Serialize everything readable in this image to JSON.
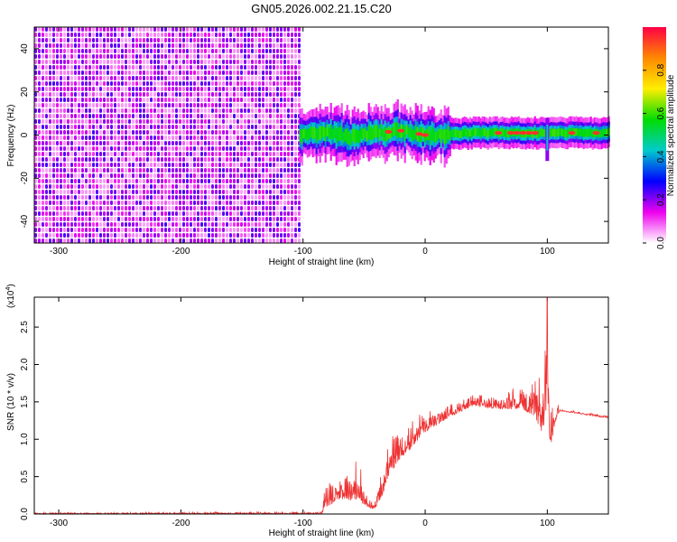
{
  "title": "GN05.2026.002.21.15.C20",
  "chart_data": [
    {
      "type": "heatmap",
      "title": "GN05.2026.002.21.15.C20",
      "xlabel": "Height of straight line (km)",
      "ylabel": "Frequency (Hz)",
      "xlim": [
        -320,
        150
      ],
      "ylim": [
        -50,
        50
      ],
      "xticks": [
        -300,
        -200,
        -100,
        0,
        100
      ],
      "yticks": [
        -40,
        -20,
        0,
        20,
        40
      ],
      "colorbar": {
        "label": "Normalized spectral amplitude",
        "range": [
          0,
          1
        ],
        "ticks": [
          "0.0",
          "0.2",
          "0.4",
          "0.6",
          "0.8"
        ],
        "tick_values": [
          0.0,
          0.2,
          0.4,
          0.6,
          0.8
        ],
        "colors": [
          "#ffffff",
          "#ee00ee",
          "#0000ff",
          "#00cccc",
          "#00dd00",
          "#ffee00",
          "#ff8800",
          "#ff0044"
        ]
      },
      "noise_region": {
        "x_range": [
          -320,
          -103
        ],
        "freq_range": [
          -50,
          50
        ],
        "level": [
          0.05,
          0.25
        ]
      },
      "quiet_gap": {
        "x_range": [
          -103,
          -100
        ]
      },
      "signal_band": {
        "x_range": [
          -103,
          150
        ],
        "center_hz": [
          {
            "x": -100,
            "hz": 0
          },
          {
            "x": -80,
            "hz": 1
          },
          {
            "x": -60,
            "hz": -1
          },
          {
            "x": -40,
            "hz": 1
          },
          {
            "x": -20,
            "hz": 2
          },
          {
            "x": 0,
            "hz": 0
          },
          {
            "x": 40,
            "hz": 1
          },
          {
            "x": 80,
            "hz": 1
          },
          {
            "x": 100,
            "hz": 1
          },
          {
            "x": 150,
            "hz": 1
          }
        ],
        "peak_amplitude": 0.95,
        "red_spots_x": [
          -30,
          -20,
          -5,
          0,
          60,
          70,
          75,
          80,
          85,
          90,
          120,
          140
        ],
        "spike": {
          "x": 100,
          "hz_range": [
            -12,
            8
          ]
        }
      }
    },
    {
      "type": "line",
      "xlabel": "Height of straight line (km)",
      "ylabel": "SNR (10 * v/v)",
      "y_multiplier": "(x10",
      "y_multiplier_exp": "4",
      "y_multiplier_close": ")",
      "xlim": [
        -320,
        150
      ],
      "ylim": [
        0,
        2.9
      ],
      "xticks": [
        -300,
        -200,
        -100,
        0,
        100
      ],
      "yticks": [
        "0.0",
        "0.5",
        "1.0",
        "1.5",
        "2.0",
        "2.5"
      ],
      "ytick_values": [
        0.0,
        0.5,
        1.0,
        1.5,
        2.0,
        2.5
      ],
      "color": "#ee3333",
      "series": [
        {
          "name": "SNR",
          "envelope": [
            {
              "x": -320,
              "base": 0.0,
              "amp": 0.02
            },
            {
              "x": -85,
              "base": 0.0,
              "amp": 0.03
            },
            {
              "x": -82,
              "base": 0.08,
              "amp": 0.3
            },
            {
              "x": -70,
              "base": 0.2,
              "amp": 0.3
            },
            {
              "x": -60,
              "base": 0.18,
              "amp": 0.45
            },
            {
              "x": -55,
              "base": 0.2,
              "amp": 0.55
            },
            {
              "x": -48,
              "base": 0.1,
              "amp": 0.2
            },
            {
              "x": -42,
              "base": 0.05,
              "amp": 0.15
            },
            {
              "x": -35,
              "base": 0.25,
              "amp": 0.35
            },
            {
              "x": -30,
              "base": 0.5,
              "amp": 0.5
            },
            {
              "x": -20,
              "base": 0.75,
              "amp": 0.4
            },
            {
              "x": -10,
              "base": 0.9,
              "amp": 0.35
            },
            {
              "x": 0,
              "base": 1.1,
              "amp": 0.3
            },
            {
              "x": 20,
              "base": 1.3,
              "amp": 0.2
            },
            {
              "x": 40,
              "base": 1.45,
              "amp": 0.15
            },
            {
              "x": 60,
              "base": 1.4,
              "amp": 0.2
            },
            {
              "x": 80,
              "base": 1.4,
              "amp": 0.35
            },
            {
              "x": 90,
              "base": 1.3,
              "amp": 0.5
            },
            {
              "x": 95,
              "base": 1.1,
              "amp": 0.8
            },
            {
              "x": 98,
              "base": 1.2,
              "amp": 1.0
            },
            {
              "x": 100,
              "base": 1.0,
              "amp": 1.3
            },
            {
              "x": 103,
              "base": 0.9,
              "amp": 1.0
            },
            {
              "x": 106,
              "base": 1.2,
              "amp": 0.4
            },
            {
              "x": 110,
              "base": 1.38,
              "amp": 0.03
            },
            {
              "x": 150,
              "base": 1.28,
              "amp": 0.03
            }
          ],
          "peak": {
            "x": 100,
            "y": 2.9
          }
        }
      ]
    }
  ]
}
